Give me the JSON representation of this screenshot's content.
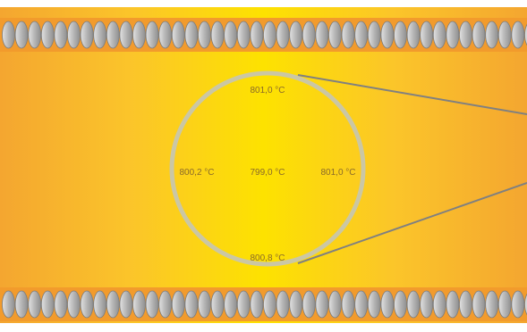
{
  "readings": {
    "top": "801,0 °C",
    "left": "800,2 °C",
    "center": "799,0 °C",
    "right": "801,0 °C",
    "bottom": "800,8 °C"
  },
  "colors": {
    "furnace_edge": "#f4a630",
    "furnace_mid": "#fbc52a",
    "furnace_center": "#fde200",
    "heater_coil": "#b9b9b9",
    "heater_band": "#f29b2c",
    "ring": "#cbc7a4",
    "callout_line": "#808080",
    "label_text": "#8a6a2a"
  }
}
